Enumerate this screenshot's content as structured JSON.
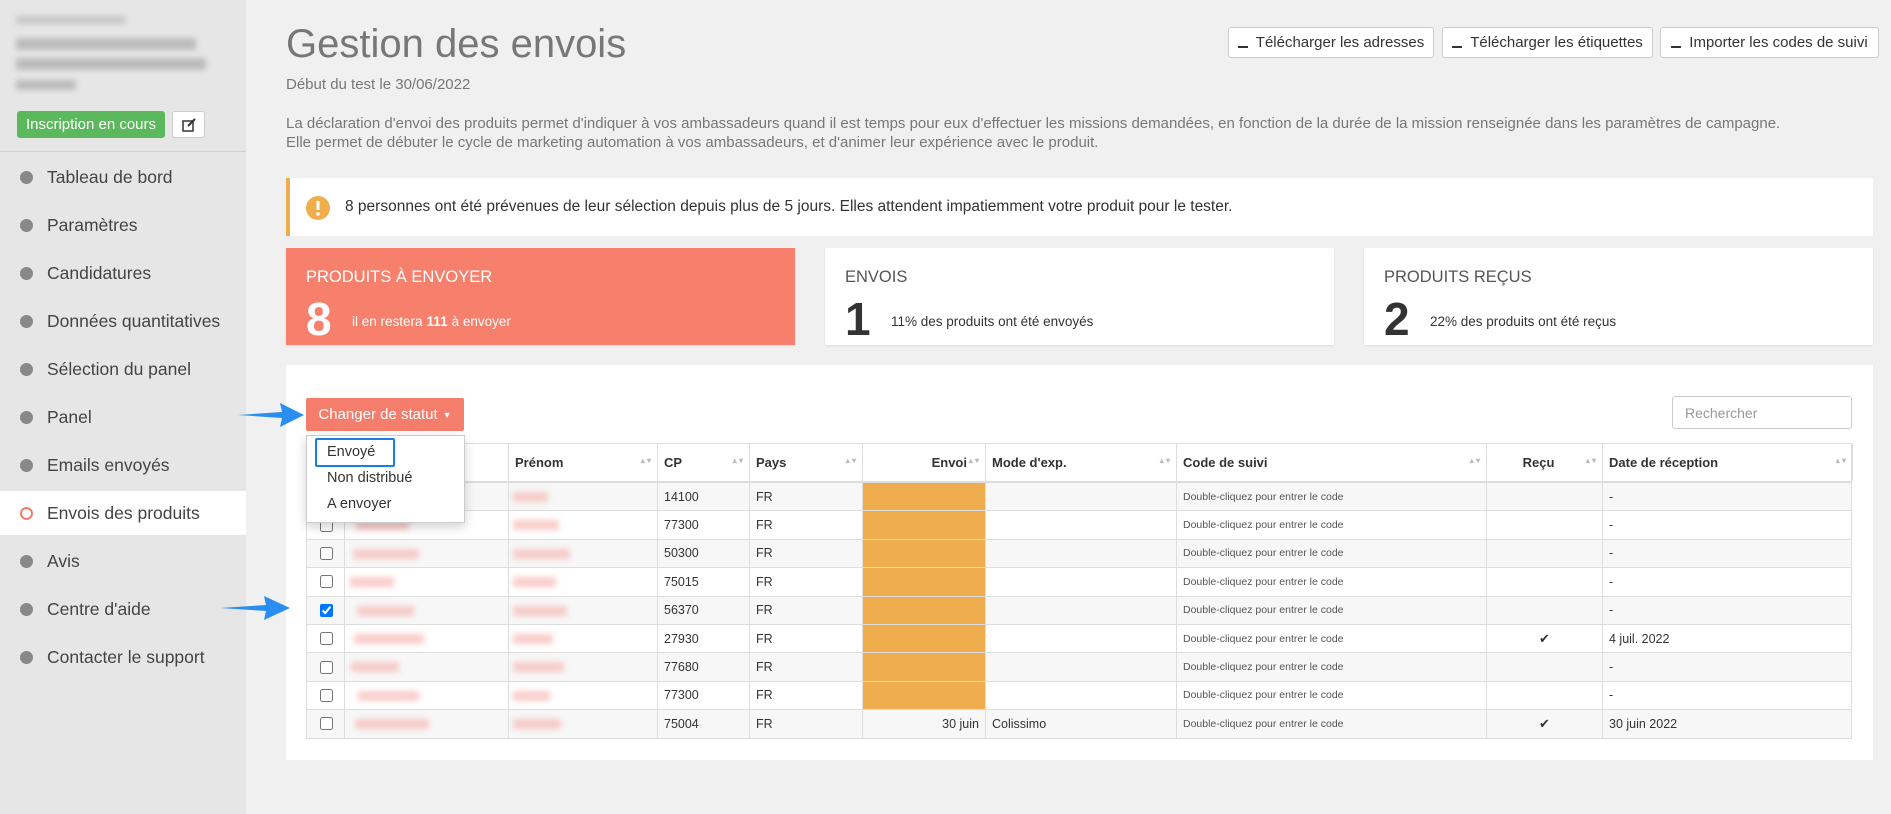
{
  "sidebar": {
    "status_button": "Inscription en cours",
    "menu": [
      "Tableau de bord",
      "Paramètres",
      "Candidatures",
      "Données quantitatives",
      "Sélection du panel",
      "Panel",
      "Emails envoyés",
      "Envois des produits",
      "Avis",
      "Centre d'aide",
      "Contacter le support"
    ],
    "active_index": 7
  },
  "header": {
    "title": "Gestion des envois",
    "subtitle": "Début du test le 30/06/2022",
    "description": [
      "La déclaration d'envoi des produits permet d'indiquer à vos ambassadeurs quand il est temps pour eux d'effectuer les missions demandées, en fonction de la durée de la mission renseignée dans les paramètres de campagne.",
      "Elle permet de débuter le cycle de marketing automation à vos ambassadeurs, et d'animer leur expérience avec le produit."
    ],
    "buttons": [
      "Télécharger les adresses",
      "Télécharger les étiquettes",
      "Importer les codes de suivi"
    ]
  },
  "alert": "8 personnes ont été prévenues de leur sélection depuis plus de 5 jours. Elles attendent impatiemment votre produit pour le tester.",
  "stats": [
    {
      "label": "PRODUITS À ENVOYER",
      "value": 8,
      "note": "il en restera",
      "note_bold": "111",
      "note_end": "à envoyer"
    },
    {
      "label": "ENVOIS",
      "value": 1,
      "note": "11% des produits ont été envoyés"
    },
    {
      "label": "PRODUITS REÇUS",
      "value": 2,
      "note": "22% des produits ont été reçus"
    }
  ],
  "toolbar": {
    "action_button": "Changer de statut",
    "search_placeholder": "Rechercher",
    "dropdown": [
      "Envoyé",
      "Non distribué",
      "A envoyer"
    ]
  },
  "table": {
    "columns": [
      "Prénom",
      "CP",
      "Pays",
      "Envoi",
      "Mode d'exp.",
      "Code de suivi",
      "Reçu",
      "Date de réception"
    ],
    "rows": [
      {
        "checked": false,
        "cp": "14100",
        "pays": "FR",
        "envoi": null,
        "mode": null,
        "tracking": "Double-cliquez pour entrer le code",
        "received": false,
        "date": "-"
      },
      {
        "checked": false,
        "cp": "77300",
        "pays": "FR",
        "envoi": null,
        "mode": null,
        "tracking": "Double-cliquez pour entrer le code",
        "received": false,
        "date": "-"
      },
      {
        "checked": false,
        "cp": "50300",
        "pays": "FR",
        "envoi": null,
        "mode": null,
        "tracking": "Double-cliquez pour entrer le code",
        "received": false,
        "date": "-"
      },
      {
        "checked": false,
        "cp": "75015",
        "pays": "FR",
        "envoi": null,
        "mode": null,
        "tracking": "Double-cliquez pour entrer le code",
        "received": false,
        "date": "-"
      },
      {
        "checked": true,
        "cp": "56370",
        "pays": "FR",
        "envoi": null,
        "mode": null,
        "tracking": "Double-cliquez pour entrer le code",
        "received": false,
        "date": "-"
      },
      {
        "checked": false,
        "cp": "27930",
        "pays": "FR",
        "envoi": null,
        "mode": null,
        "tracking": "Double-cliquez pour entrer le code",
        "received": true,
        "date": "4 juil. 2022"
      },
      {
        "checked": false,
        "cp": "77680",
        "pays": "FR",
        "envoi": null,
        "mode": null,
        "tracking": "Double-cliquez pour entrer le code",
        "received": false,
        "date": "-"
      },
      {
        "checked": false,
        "cp": "77300",
        "pays": "FR",
        "envoi": null,
        "mode": null,
        "tracking": "Double-cliquez pour entrer le code",
        "received": false,
        "date": "-"
      },
      {
        "checked": false,
        "cp": "75004",
        "pays": "FR",
        "envoi": "30 juin",
        "mode": "Colissimo",
        "tracking": "Double-cliquez pour entrer le code",
        "received": true,
        "date": "30 juin 2022"
      }
    ]
  }
}
